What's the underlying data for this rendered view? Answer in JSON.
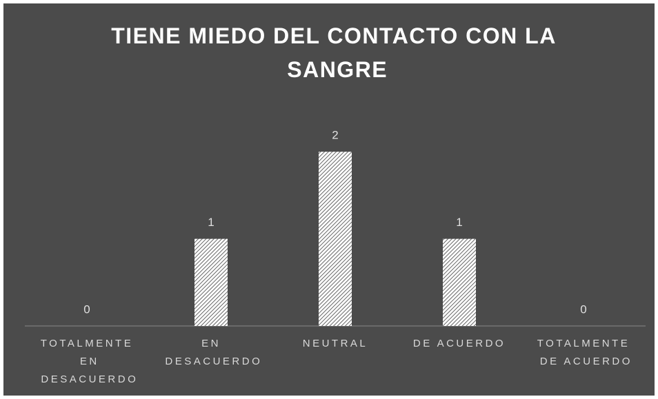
{
  "chart_data": {
    "type": "bar",
    "title": "TIENE MIEDO DEL CONTACTO CON LA SANGRE",
    "categories": [
      "TOTALMENTE EN DESACUERDO",
      "EN DESACUERDO",
      "NEUTRAL",
      "DE ACUERDO",
      "TOTALMENTE DE ACUERDO"
    ],
    "values": [
      0,
      1,
      2,
      1,
      0
    ],
    "color": "#ffffff",
    "pattern": "hatch",
    "ylim": [
      0,
      2.5
    ],
    "grid": false
  }
}
